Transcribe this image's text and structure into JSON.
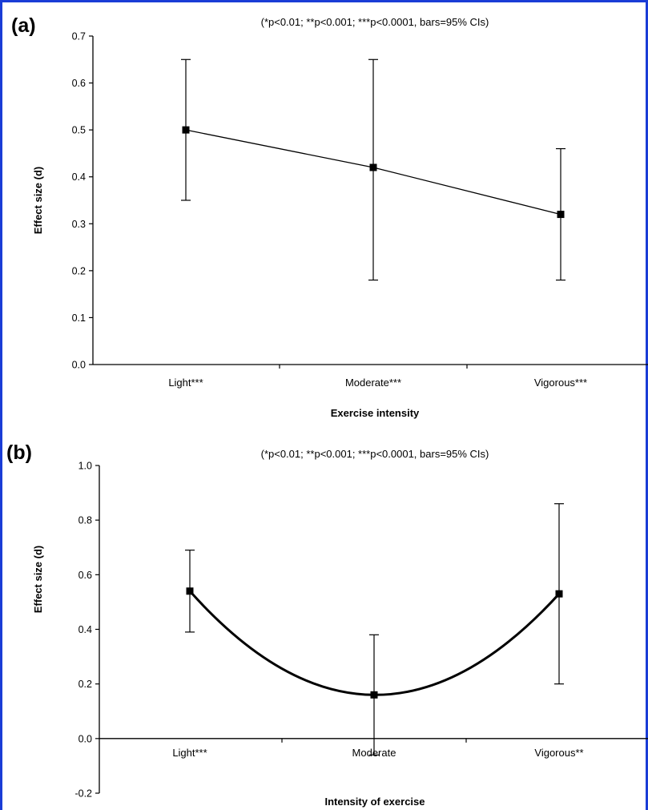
{
  "chart_data": [
    {
      "type": "line",
      "panel_label": "(a)",
      "note": "(*p<0.01; **p<0.001; ***p<0.0001, bars=95% CIs)",
      "xlabel": "Exercise intensity",
      "ylabel": "Effect size (d)",
      "categories": [
        "Light***",
        "Moderate***",
        "Vigorous***"
      ],
      "values": [
        0.5,
        0.42,
        0.32
      ],
      "ci_low": [
        0.35,
        0.18,
        0.18
      ],
      "ci_high": [
        0.65,
        0.65,
        0.46
      ],
      "ylim": [
        0.0,
        0.7
      ],
      "yticks": [
        "0.0",
        "0.1",
        "0.2",
        "0.3",
        "0.4",
        "0.5",
        "0.6",
        "0.7"
      ],
      "curve": "straight",
      "grid": false
    },
    {
      "type": "line",
      "panel_label": "(b)",
      "note": "(*p<0.01; **p<0.001; ***p<0.0001, bars=95% CIs)",
      "xlabel": "Intensity of exercise",
      "ylabel": "Effect size (d)",
      "categories": [
        "Light***",
        "Moderate",
        "Vigorous**"
      ],
      "values": [
        0.54,
        0.16,
        0.53
      ],
      "ci_low": [
        0.39,
        -0.06,
        0.2
      ],
      "ci_high": [
        0.69,
        0.38,
        0.86
      ],
      "ylim": [
        -0.2,
        1.0
      ],
      "yticks": [
        "-0.2",
        "0.0",
        "0.2",
        "0.4",
        "0.6",
        "0.8",
        "1.0"
      ],
      "curve": "smooth",
      "grid": false
    }
  ]
}
